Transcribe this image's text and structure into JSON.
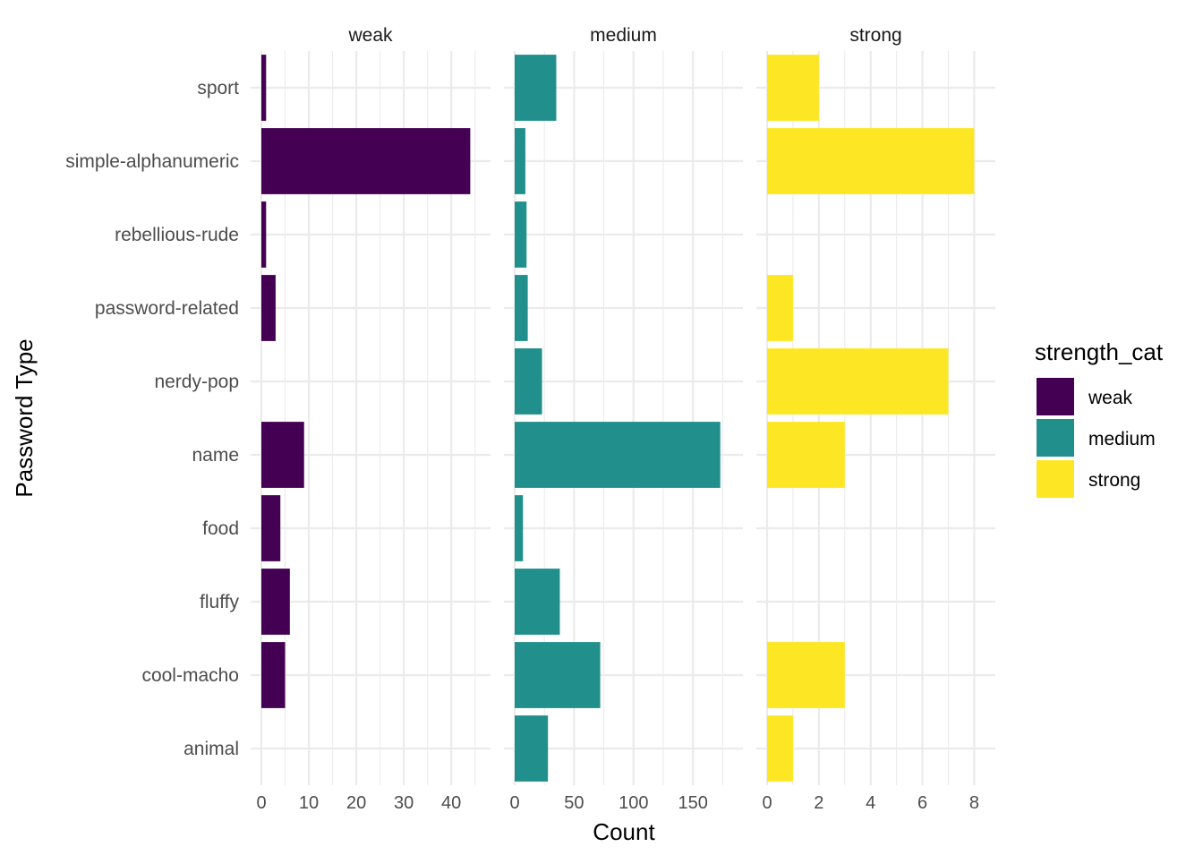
{
  "chart_data": {
    "type": "bar",
    "orientation": "horizontal",
    "xlabel": "Count",
    "ylabel": "Password Type",
    "categories": [
      "animal",
      "cool-macho",
      "fluffy",
      "food",
      "name",
      "nerdy-pop",
      "password-related",
      "rebellious-rude",
      "simple-alphanumeric",
      "sport"
    ],
    "facets": [
      {
        "name": "weak",
        "color": "#440154",
        "xlim": [
          0,
          46
        ],
        "ticks": [
          0,
          10,
          20,
          30,
          40
        ],
        "tick_labels": [
          "0",
          "10",
          "20",
          "30",
          "40"
        ],
        "values": [
          0,
          5,
          6,
          4,
          9,
          0,
          3,
          1,
          44,
          1
        ]
      },
      {
        "name": "medium",
        "color": "#21908C",
        "xlim": [
          0,
          183
        ],
        "ticks": [
          0,
          50,
          100,
          150
        ],
        "tick_labels": [
          "0",
          "50",
          "100",
          "150"
        ],
        "values": [
          28,
          72,
          38,
          7,
          173,
          23,
          11,
          10,
          9,
          35
        ]
      },
      {
        "name": "strong",
        "color": "#FDE725",
        "xlim": [
          0,
          8.4
        ],
        "ticks": [
          0,
          2,
          4,
          6,
          8
        ],
        "tick_labels": [
          "0",
          "2",
          "4",
          "6",
          "8"
        ],
        "values": [
          1,
          3,
          0,
          0,
          3,
          7,
          1,
          0,
          8,
          2
        ]
      }
    ],
    "legend": {
      "title": "strength_cat",
      "position": "right",
      "items": [
        {
          "label": "weak",
          "color": "#440154"
        },
        {
          "label": "medium",
          "color": "#21908C"
        },
        {
          "label": "strong",
          "color": "#FDE725"
        }
      ]
    },
    "grid": true
  }
}
